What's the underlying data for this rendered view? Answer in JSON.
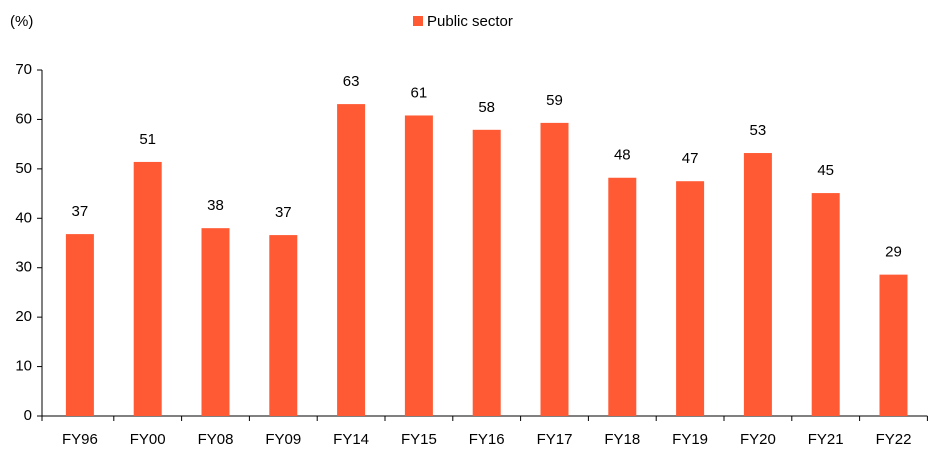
{
  "chart_data": {
    "type": "bar",
    "y_label": "(%)",
    "categories": [
      "FY96",
      "FY00",
      "FY08",
      "FY09",
      "FY14",
      "FY15",
      "FY16",
      "FY17",
      "FY18",
      "FY19",
      "FY20",
      "FY21",
      "FY22"
    ],
    "series": [
      {
        "name": "Public sector",
        "color": "#ff5a33",
        "values": [
          36.8,
          51.4,
          38.0,
          36.6,
          63.1,
          60.8,
          57.9,
          59.3,
          48.2,
          47.5,
          53.2,
          45.1,
          28.6
        ],
        "value_labels": [
          "37",
          "51",
          "38",
          "37",
          "63",
          "61",
          "58",
          "59",
          "48",
          "47",
          "53",
          "45",
          "29"
        ]
      }
    ],
    "ylim": [
      0,
      70
    ],
    "yticks": [
      0,
      10,
      20,
      30,
      40,
      50,
      60,
      70
    ],
    "grid": false,
    "legend": "top"
  }
}
